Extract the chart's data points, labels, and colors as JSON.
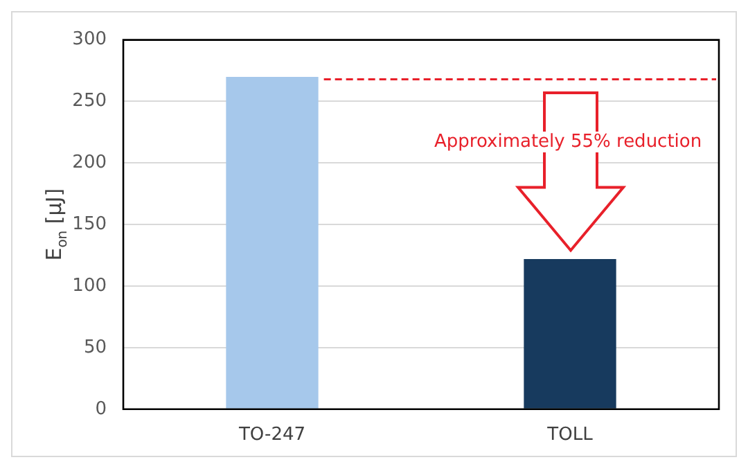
{
  "chart_data": {
    "type": "bar",
    "ylabel": "E$_{on}$ [μJ]",
    "categories": [
      "TO-247",
      "TOLL"
    ],
    "values": [
      270,
      122
    ],
    "colors": [
      "#a6c8eb",
      "#173a5e"
    ],
    "ylim": [
      0,
      300
    ],
    "yticks": [
      0,
      50,
      100,
      150,
      200,
      250,
      300
    ],
    "grid": "y",
    "ref_lines": [
      {
        "axis": "y",
        "value": 268,
        "color": "#e8202a",
        "line_style": "dashed"
      }
    ],
    "annotations": [
      "Approximately 55% reduction"
    ]
  }
}
